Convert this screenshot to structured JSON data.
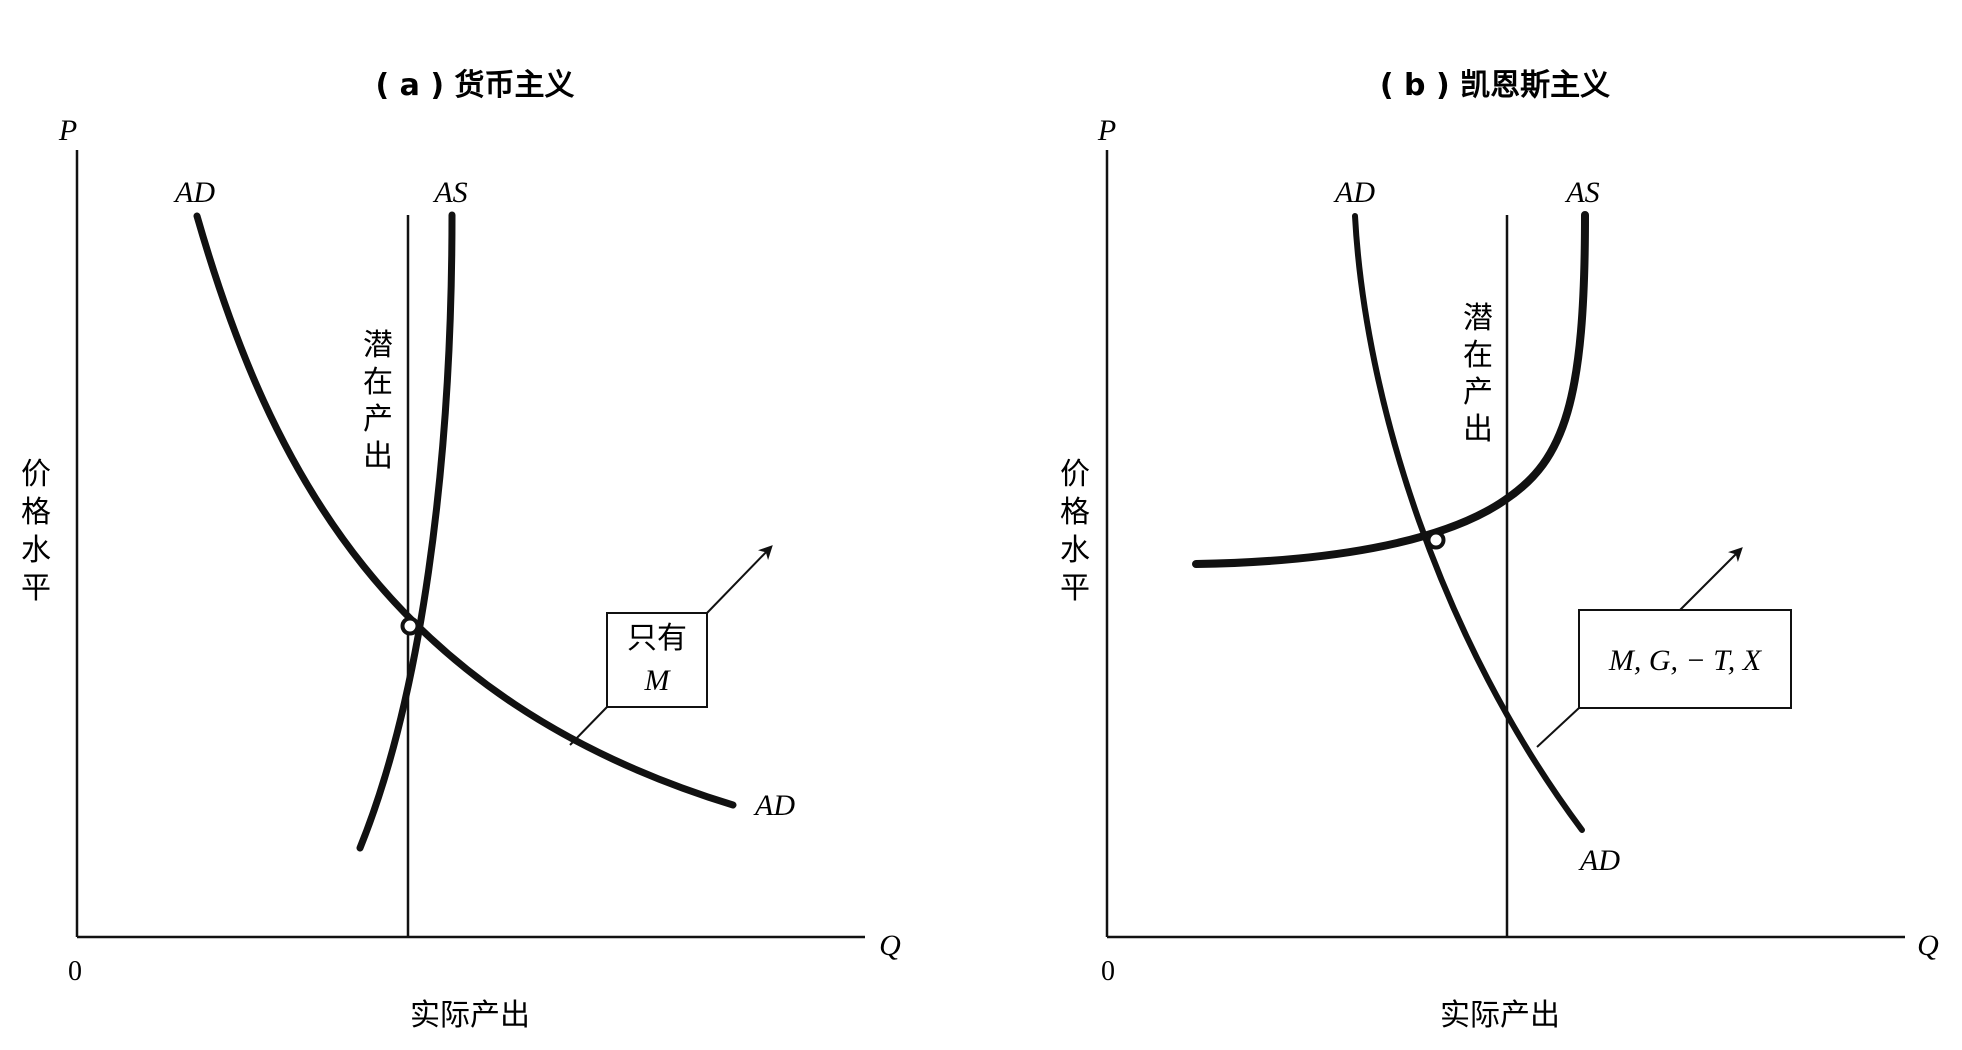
{
  "panels": [
    {
      "id": "a",
      "title": "( a ) 货币主义",
      "y_axis_label": "P",
      "x_axis_label": "Q",
      "origin_label": "0",
      "y_axis_title": [
        "价",
        "格",
        "水",
        "平"
      ],
      "x_axis_title": "实际产出",
      "potential_output_label": [
        "潜",
        "在",
        "产",
        "出"
      ],
      "ad_label_top": "AD",
      "ad_label_bottom": "AD",
      "as_label": "AS",
      "shift_box_lines": [
        "只有",
        "M"
      ]
    },
    {
      "id": "b",
      "title": "( b ) 凯恩斯主义",
      "y_axis_label": "P",
      "x_axis_label": "Q",
      "origin_label": "0",
      "y_axis_title": [
        "价",
        "格",
        "水",
        "平"
      ],
      "x_axis_title": "实际产出",
      "potential_output_label": [
        "潜",
        "在",
        "产",
        "出"
      ],
      "ad_label_top": "AD",
      "ad_label_bottom": "AD",
      "as_label": "AS",
      "shift_box_lines": [
        "M, G, − T, X"
      ]
    }
  ]
}
